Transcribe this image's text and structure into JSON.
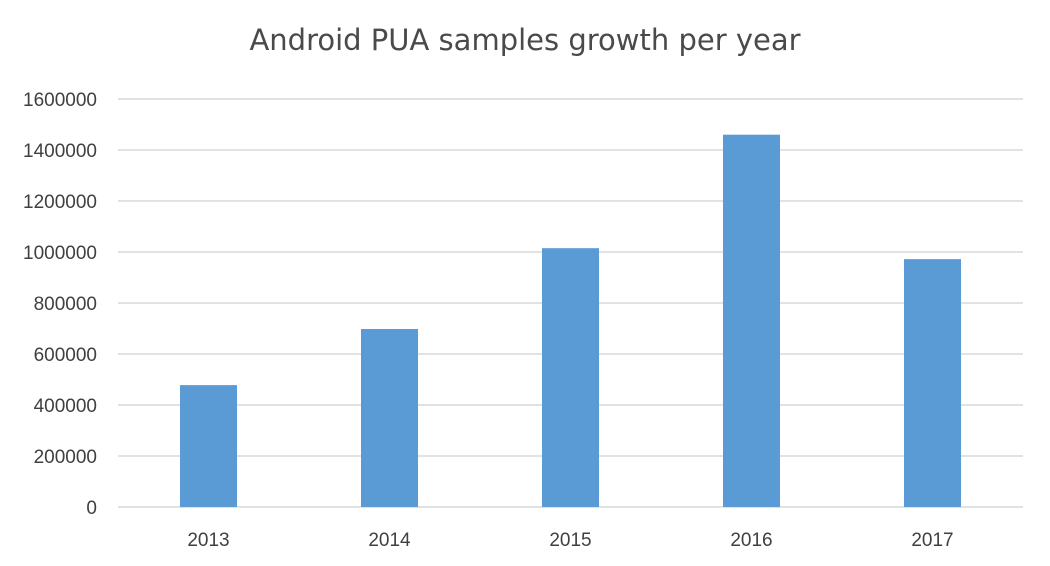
{
  "chart_data": {
    "type": "bar",
    "title": "Android PUA samples growth per year",
    "categories": [
      "2013",
      "2014",
      "2015",
      "2016",
      "2017"
    ],
    "values": [
      478000,
      698000,
      1015000,
      1460000,
      972000
    ],
    "ylim": [
      0,
      1600000
    ],
    "yticks": [
      0,
      200000,
      400000,
      600000,
      800000,
      1000000,
      1200000,
      1400000,
      1600000
    ],
    "ytick_labels": [
      "0",
      "200000",
      "400000",
      "600000",
      "800000",
      "1000000",
      "1200000",
      "1400000",
      "1600000"
    ],
    "xlabel": "",
    "ylabel": "",
    "grid": true,
    "legend": "none",
    "bar_color": "#5b9bd5"
  }
}
